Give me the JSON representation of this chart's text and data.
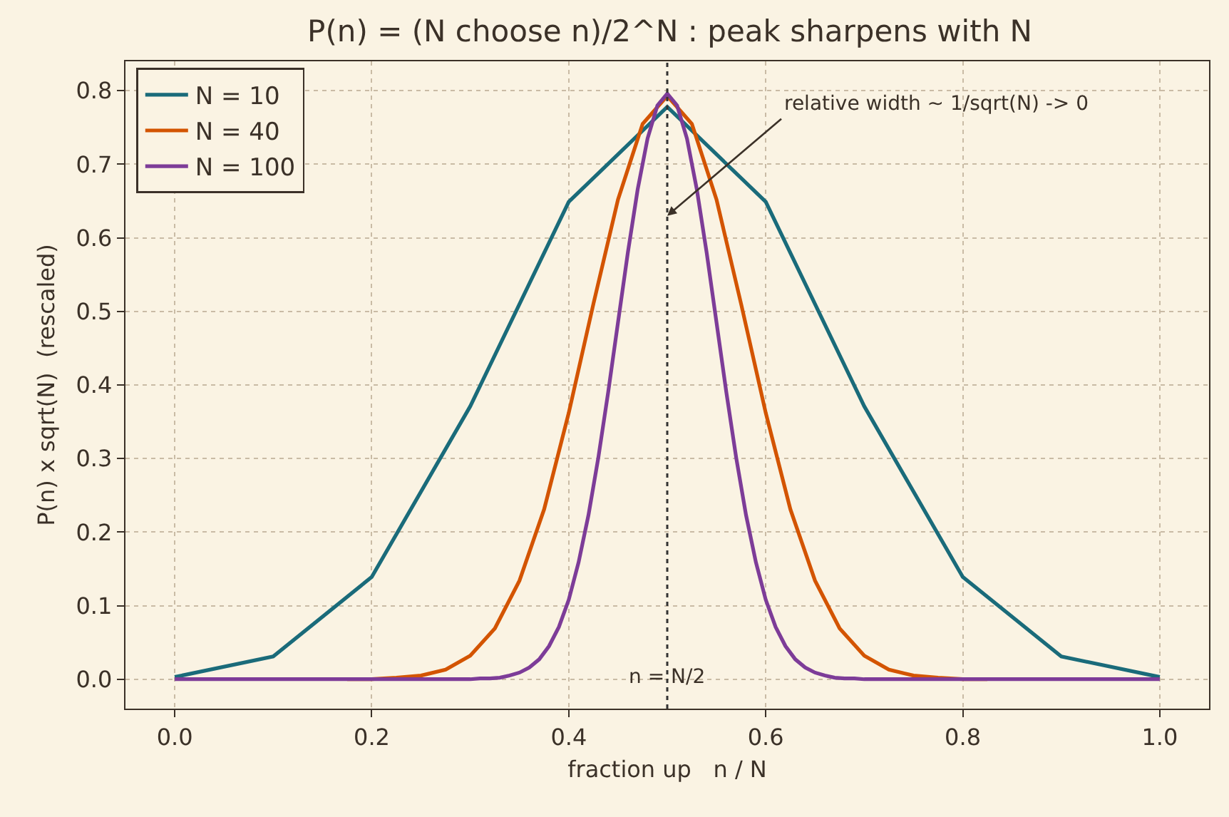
{
  "chart_data": {
    "type": "line",
    "title": "P(n) = (N choose n)/2^N : peak sharpens with N",
    "xlabel": "fraction up   n / N",
    "ylabel": "P(n) x sqrt(N)  (rescaled)",
    "xlim": [
      -0.05,
      1.05
    ],
    "xticks": [
      {
        "value": 0,
        "label": "0.0"
      },
      0.2,
      0.4,
      0.6,
      0.8,
      {
        "value": 1,
        "label": "1.0"
      }
    ],
    "ylim": [
      -0.04,
      0.84
    ],
    "yticks": [
      {
        "value": 0,
        "label": "0.0"
      },
      0.1,
      0.2,
      0.3,
      0.4,
      0.5,
      0.6,
      0.7,
      0.8
    ],
    "grid": true,
    "legend": "top left",
    "line_style": "solid",
    "marker": "none",
    "series": [
      {
        "name": "N = 10",
        "color": "#1a6b7a",
        "x": [
          0,
          0.1,
          0.2,
          0.3,
          0.4,
          0.5,
          0.6,
          0.7,
          0.8,
          0.9,
          1.0
        ],
        "values": [
          0.003,
          0.031,
          0.139,
          0.371,
          0.649,
          0.778,
          0.649,
          0.371,
          0.139,
          0.031,
          0.003
        ]
      },
      {
        "name": "N = 40",
        "color": "#d35400",
        "x": [
          0.175,
          0.2,
          0.225,
          0.25,
          0.275,
          0.3,
          0.325,
          0.35,
          0.375,
          0.4,
          0.425,
          0.45,
          0.475,
          0.5,
          0.525,
          0.55,
          0.575,
          0.6,
          0.625,
          0.65,
          0.675,
          0.7,
          0.725,
          0.75,
          0.775,
          0.8,
          0.825
        ],
        "values": [
          0,
          0,
          0.002,
          0.005,
          0.013,
          0.032,
          0.069,
          0.134,
          0.231,
          0.362,
          0.51,
          0.652,
          0.755,
          0.793,
          0.755,
          0.652,
          0.51,
          0.362,
          0.231,
          0.134,
          0.069,
          0.032,
          0.013,
          0.005,
          0.002,
          0,
          0
        ]
      },
      {
        "name": "N = 100",
        "color": "#7d3c98",
        "x": [
          0,
          0.1,
          0.2,
          0.3,
          0.31,
          0.32,
          0.33,
          0.34,
          0.35,
          0.36,
          0.37,
          0.38,
          0.39,
          0.4,
          0.41,
          0.42,
          0.43,
          0.44,
          0.45,
          0.46,
          0.47,
          0.48,
          0.49,
          0.5,
          0.51,
          0.52,
          0.53,
          0.54,
          0.55,
          0.56,
          0.57,
          0.58,
          0.59,
          0.6,
          0.61,
          0.62,
          0.63,
          0.64,
          0.65,
          0.66,
          0.67,
          0.68,
          0.69,
          0.7,
          0.8,
          0.9,
          1.0
        ],
        "values": [
          0,
          0,
          0,
          0,
          0.001,
          0.001,
          0.002,
          0.005,
          0.009,
          0.016,
          0.027,
          0.045,
          0.071,
          0.108,
          0.159,
          0.223,
          0.301,
          0.39,
          0.485,
          0.58,
          0.666,
          0.735,
          0.78,
          0.796,
          0.78,
          0.735,
          0.666,
          0.58,
          0.485,
          0.39,
          0.301,
          0.223,
          0.159,
          0.108,
          0.071,
          0.045,
          0.027,
          0.016,
          0.009,
          0.005,
          0.002,
          0.001,
          0.001,
          0,
          0,
          0,
          0
        ]
      }
    ],
    "ref_lines": [
      {
        "axis": "x",
        "value": 0.5,
        "label": "n = N/2",
        "color": "#333333",
        "line_style": "dotted"
      }
    ],
    "annotations": [
      {
        "text": "relative width ~ 1/sqrt(N) -> 0",
        "x": 0.5,
        "y": 0.63
      }
    ]
  }
}
